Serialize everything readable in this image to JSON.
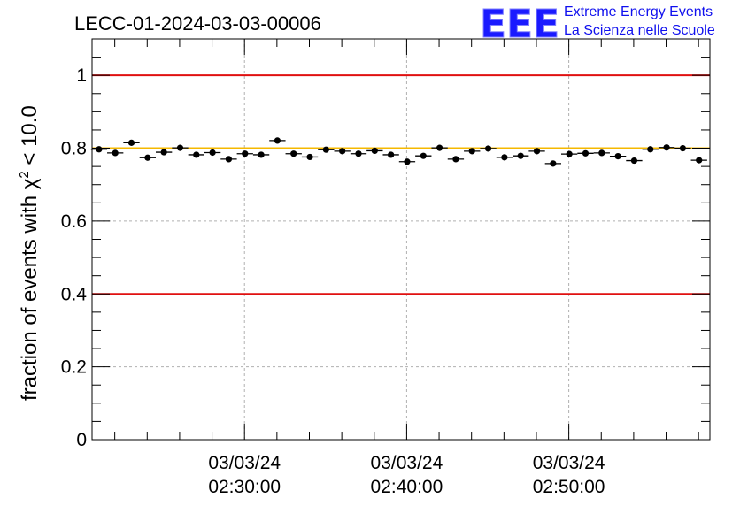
{
  "chart_data": {
    "type": "scatter",
    "title": "LECC-01-2024-03-03-00006",
    "ylabel": "fraction of events with χ² < 10.0",
    "ylabel_prefix": "fraction of events with ",
    "ylabel_symbol": "χ",
    "ylabel_exp": "2",
    "ylabel_suffix": " < 10.0",
    "ylim": [
      0,
      1.1
    ],
    "yticks": [
      {
        "value": 0,
        "label": "0"
      },
      {
        "value": 0.2,
        "label": "0.2"
      },
      {
        "value": 0.4,
        "label": "0.4"
      },
      {
        "value": 0.6,
        "label": "0.6"
      },
      {
        "value": 0.8,
        "label": "0.8"
      },
      {
        "value": 1,
        "label": "1"
      }
    ],
    "xlim_minutes": [
      20.6,
      58.7
    ],
    "xticks": [
      {
        "minute": 30,
        "date": "03/03/24",
        "time": "02:30:00"
      },
      {
        "minute": 40,
        "date": "03/03/24",
        "time": "02:40:00"
      },
      {
        "minute": 50,
        "date": "03/03/24",
        "time": "02:50:00"
      }
    ],
    "grid": true,
    "reference_lines": [
      {
        "y": 1.0,
        "color": "#e01010"
      },
      {
        "y": 0.8,
        "color": "#f5b800"
      },
      {
        "y": 0.4,
        "color": "#e01010"
      }
    ],
    "series": [
      {
        "x_minutes": [
          21.03,
          22.03,
          23.03,
          24.03,
          25.03,
          26.03,
          27.03,
          28.03,
          29.03,
          30.03,
          31.03,
          32.03,
          33.03,
          34.03,
          35.03,
          36.03,
          37.03,
          38.03,
          39.03,
          40.03,
          41.03,
          42.03,
          43.03,
          44.03,
          45.03,
          46.03,
          47.03,
          48.03,
          49.03,
          50.03,
          51.03,
          52.03,
          53.03,
          54.03,
          55.03,
          56.03,
          57.03,
          58.03
        ],
        "values": [
          0.797,
          0.787,
          0.815,
          0.774,
          0.789,
          0.801,
          0.782,
          0.788,
          0.77,
          0.785,
          0.782,
          0.821,
          0.785,
          0.776,
          0.796,
          0.792,
          0.785,
          0.793,
          0.782,
          0.763,
          0.779,
          0.801,
          0.77,
          0.792,
          0.799,
          0.775,
          0.779,
          0.792,
          0.758,
          0.784,
          0.786,
          0.787,
          0.778,
          0.766,
          0.797,
          0.802,
          0.8,
          0.767
        ],
        "half_width_minutes": 0.5,
        "error": 0.006
      }
    ]
  },
  "logo": {
    "letters": "EEE",
    "line1": "Extreme Energy Events",
    "line2": "La Scienza nelle Scuole"
  },
  "colors": {
    "logo": "#1a1aff",
    "marker": "#000000",
    "grid": "#b0b0b0"
  }
}
